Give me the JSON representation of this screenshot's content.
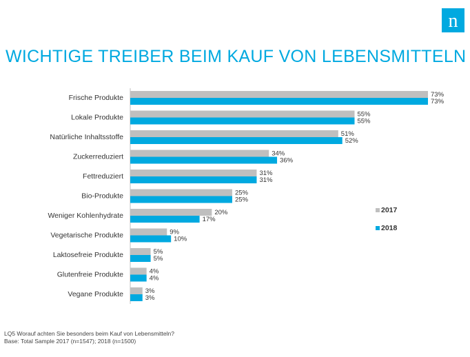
{
  "title": "WICHTIGE TREIBER BEIM KAUF VON LEBENSMITTELN",
  "logo_letter": "n",
  "colors": {
    "brand": "#00a9e0",
    "series_2017": "#bfbfbf",
    "series_2018": "#00a9e0"
  },
  "footnote": {
    "question": "LQ5  Worauf achten Sie besonders beim Kauf von Lebensmitteln?",
    "base": "Base: Total Sample 2017 (n=1547); 2018 (n=1500)"
  },
  "chart_data": {
    "type": "bar",
    "orientation": "horizontal",
    "categories": [
      "Frische Produkte",
      "Lokale Produkte",
      "Natürliche Inhaltsstoffe",
      "Zuckerreduziert",
      "Fettreduziert",
      "Bio-Produkte",
      "Weniger Kohlenhydrate",
      "Vegetarische Produkte",
      "Laktosefreie Produkte",
      "Glutenfreie Produkte",
      "Vegane Produkte"
    ],
    "series": [
      {
        "name": "2017",
        "values": [
          73,
          55,
          51,
          34,
          31,
          25,
          20,
          9,
          5,
          4,
          3
        ],
        "color": "#bfbfbf"
      },
      {
        "name": "2018",
        "values": [
          73,
          55,
          52,
          36,
          31,
          25,
          17,
          10,
          5,
          4,
          3
        ],
        "color": "#00a9e0"
      }
    ],
    "value_suffix": "%",
    "legend_position": "right",
    "grid": false,
    "xlim": [
      0,
      73
    ]
  }
}
